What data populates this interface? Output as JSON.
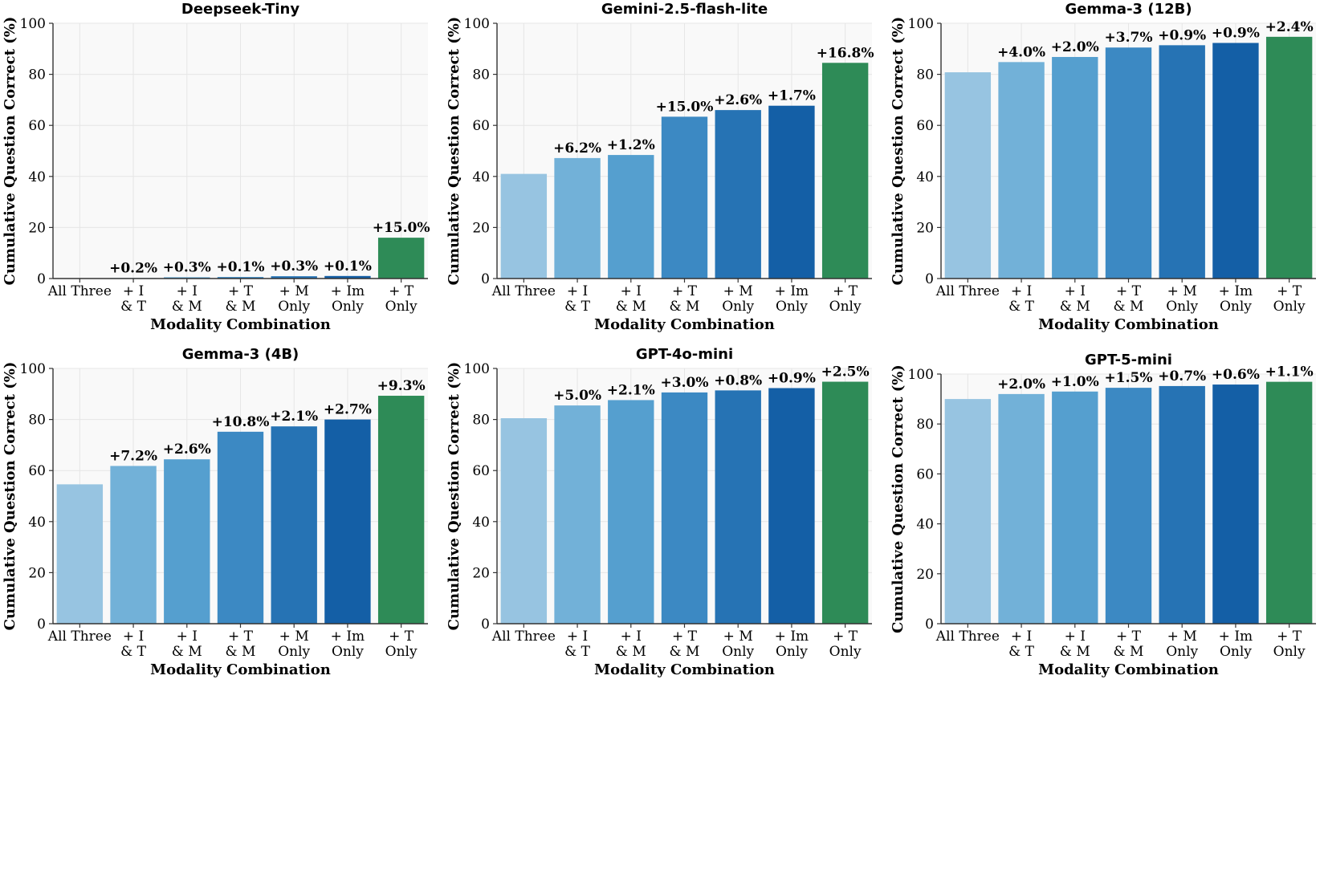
{
  "colors": {
    "title": "#0000ff",
    "plot_bg": "#f9f9f9",
    "grid": "#e6e6e6",
    "axis": "#333333",
    "bars": [
      "#97c4e1",
      "#72b1d8",
      "#559fcf",
      "#3c89c3",
      "#2673b4",
      "#145fa6",
      "#2e8b57"
    ]
  },
  "chart_data": [
    {
      "type": "bar",
      "title": "Deepseek-Tiny",
      "xlabel": "Modality Combination",
      "ylabel": "Cumulative Question Correct (%)",
      "ylim": [
        0,
        100
      ],
      "yticks": [
        "0",
        "20",
        "40",
        "60",
        "80",
        "100"
      ],
      "categories": [
        [
          "All Three"
        ],
        [
          "+ I",
          "& T"
        ],
        [
          "+ I",
          "& M"
        ],
        [
          "+ T",
          "& M"
        ],
        [
          "+ M",
          "Only"
        ],
        [
          "+ Im",
          "Only"
        ],
        [
          "+ T",
          "Only"
        ]
      ],
      "values": [
        0,
        0.2,
        0.5,
        0.6,
        0.9,
        1.0,
        16.0
      ],
      "labels": [
        "",
        "+0.2%",
        "+0.3%",
        "+0.1%",
        "+0.3%",
        "+0.1%",
        "+15.0%"
      ]
    },
    {
      "type": "bar",
      "title": "Gemini-2.5-flash-lite",
      "xlabel": "Modality Combination",
      "ylabel": "Cumulative Question Correct (%)",
      "ylim": [
        0,
        100
      ],
      "yticks": [
        "0",
        "20",
        "40",
        "60",
        "80",
        "100"
      ],
      "categories": [
        [
          "All Three"
        ],
        [
          "+ I",
          "& T"
        ],
        [
          "+ I",
          "& M"
        ],
        [
          "+ T",
          "& M"
        ],
        [
          "+ M",
          "Only"
        ],
        [
          "+ Im",
          "Only"
        ],
        [
          "+ T",
          "Only"
        ]
      ],
      "values": [
        41.0,
        47.2,
        48.4,
        63.4,
        66.0,
        67.7,
        84.5
      ],
      "labels": [
        "",
        "+6.2%",
        "+1.2%",
        "+15.0%",
        "+2.6%",
        "+1.7%",
        "+16.8%"
      ]
    },
    {
      "type": "bar",
      "title": "Gemma-3 (12B)",
      "xlabel": "Modality Combination",
      "ylabel": "Cumulative Question Correct (%)",
      "ylim": [
        0,
        100
      ],
      "yticks": [
        "0",
        "20",
        "40",
        "60",
        "80",
        "100"
      ],
      "categories": [
        [
          "All Three"
        ],
        [
          "+ I",
          "& T"
        ],
        [
          "+ I",
          "& M"
        ],
        [
          "+ T",
          "& M"
        ],
        [
          "+ M",
          "Only"
        ],
        [
          "+ Im",
          "Only"
        ],
        [
          "+ T",
          "Only"
        ]
      ],
      "values": [
        80.8,
        84.8,
        86.8,
        90.5,
        91.4,
        92.3,
        94.7
      ],
      "labels": [
        "",
        "+4.0%",
        "+2.0%",
        "+3.7%",
        "+0.9%",
        "+0.9%",
        "+2.4%"
      ]
    },
    {
      "type": "bar",
      "title": "Gemma-3 (4B)",
      "xlabel": "Modality Combination",
      "ylabel": "Cumulative Question Correct (%)",
      "ylim": [
        0,
        100
      ],
      "yticks": [
        "0",
        "20",
        "40",
        "60",
        "80",
        "100"
      ],
      "categories": [
        [
          "All Three"
        ],
        [
          "+ I",
          "& T"
        ],
        [
          "+ I",
          "& M"
        ],
        [
          "+ T",
          "& M"
        ],
        [
          "+ M",
          "Only"
        ],
        [
          "+ Im",
          "Only"
        ],
        [
          "+ T",
          "Only"
        ]
      ],
      "values": [
        54.6,
        61.8,
        64.4,
        75.2,
        77.3,
        80.0,
        89.3
      ],
      "labels": [
        "",
        "+7.2%",
        "+2.6%",
        "+10.8%",
        "+2.1%",
        "+2.7%",
        "+9.3%"
      ]
    },
    {
      "type": "bar",
      "title": "GPT-4o-mini",
      "xlabel": "Modality Combination",
      "ylabel": "Cumulative Question Correct (%)",
      "ylim": [
        0,
        100
      ],
      "yticks": [
        "0",
        "20",
        "40",
        "60",
        "80",
        "100"
      ],
      "categories": [
        [
          "All Three"
        ],
        [
          "+ I",
          "& T"
        ],
        [
          "+ I",
          "& M"
        ],
        [
          "+ T",
          "& M"
        ],
        [
          "+ M",
          "Only"
        ],
        [
          "+ Im",
          "Only"
        ],
        [
          "+ T",
          "Only"
        ]
      ],
      "values": [
        80.5,
        85.5,
        87.6,
        90.6,
        91.4,
        92.3,
        94.8
      ],
      "labels": [
        "",
        "+5.0%",
        "+2.1%",
        "+3.0%",
        "+0.8%",
        "+0.9%",
        "+2.5%"
      ]
    },
    {
      "type": "bar",
      "title": "GPT-5-mini",
      "xlabel": "Modality Combination",
      "ylabel": "Cumulative Question Correct (%)",
      "ylim": [
        0,
        100
      ],
      "yticks": [
        "0",
        "20",
        "40",
        "60",
        "80",
        "100"
      ],
      "categories": [
        [
          "All Three"
        ],
        [
          "+ I",
          "& T"
        ],
        [
          "+ I",
          "& M"
        ],
        [
          "+ T",
          "& M"
        ],
        [
          "+ M",
          "Only"
        ],
        [
          "+ Im",
          "Only"
        ],
        [
          "+ T",
          "Only"
        ]
      ],
      "values": [
        90.0,
        92.0,
        93.0,
        94.5,
        95.2,
        95.8,
        96.9
      ],
      "labels": [
        "",
        "+2.0%",
        "+1.0%",
        "+1.5%",
        "+0.7%",
        "+0.6%",
        "+1.1%"
      ]
    }
  ]
}
